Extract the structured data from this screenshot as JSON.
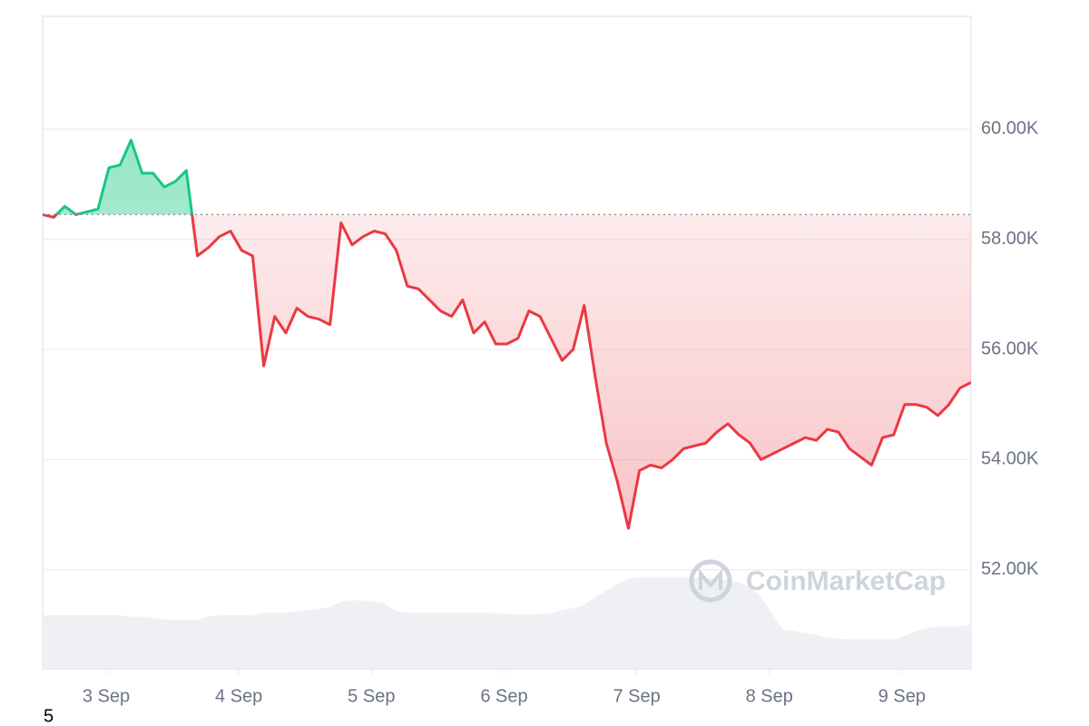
{
  "chart_data": {
    "type": "line",
    "reference": 58450,
    "series": [
      {
        "name": "price",
        "color_up": "#16c784",
        "color_down": "#ea3943",
        "values": [
          58450,
          58400,
          58600,
          58450,
          58500,
          58550,
          59300,
          59350,
          59800,
          59200,
          59200,
          58950,
          59050,
          59250,
          57700,
          57850,
          58050,
          58150,
          57800,
          57700,
          55700,
          56600,
          56300,
          56750,
          56600,
          56550,
          56450,
          58300,
          57900,
          58050,
          58150,
          58100,
          57800,
          57150,
          57100,
          56900,
          56700,
          56600,
          56900,
          56300,
          56500,
          56100,
          56100,
          56200,
          56700,
          56600,
          56200,
          55800,
          56000,
          56800,
          55500,
          54300,
          53600,
          52750,
          53800,
          53900,
          53850,
          54000,
          54200,
          54250,
          54300,
          54500,
          54650,
          54450,
          54300,
          54000,
          54100,
          54200,
          54300,
          54400,
          54350,
          54550,
          54500,
          54200,
          54050,
          53900,
          54400,
          54450,
          55000,
          55000,
          54950,
          54800,
          55000,
          55300,
          55400
        ]
      },
      {
        "name": "volume",
        "axis": "y2",
        "color": "#eef0f3",
        "values": [
          8.2,
          8.2,
          8.2,
          8.2,
          8.2,
          8.2,
          8.2,
          8.2,
          8.0,
          8.0,
          7.8,
          7.6,
          7.5,
          7.5,
          7.5,
          8.0,
          8.2,
          8.2,
          8.2,
          8.2,
          8.6,
          8.6,
          8.6,
          8.8,
          9.0,
          9.2,
          9.5,
          10.3,
          10.5,
          10.5,
          10.3,
          10.0,
          8.8,
          8.6,
          8.6,
          8.6,
          8.6,
          8.6,
          8.6,
          8.6,
          8.6,
          8.5,
          8.4,
          8.4,
          8.4,
          8.4,
          8.5,
          9.0,
          9.3,
          9.8,
          11.0,
          12.0,
          13.0,
          13.8,
          14.0,
          14.0,
          14.0,
          14.0,
          14.0,
          14.0,
          13.9,
          13.8,
          13.6,
          13.3,
          12.5,
          11.0,
          8.5,
          6.0,
          5.8,
          5.5,
          5.2,
          4.8,
          4.6,
          4.5,
          4.5,
          4.5,
          4.5,
          4.5,
          5.0,
          5.8,
          6.2,
          6.5,
          6.5,
          6.5,
          6.8
        ]
      }
    ],
    "ylim": [
      50200,
      62050
    ],
    "y2lim": [
      0,
      100
    ],
    "yticks": [
      {
        "value": 52000,
        "label": "52.00K"
      },
      {
        "value": 54000,
        "label": "54.00K"
      },
      {
        "value": 56000,
        "label": "56.00K"
      },
      {
        "value": 58000,
        "label": "58.00K"
      },
      {
        "value": 60000,
        "label": "60.00K"
      }
    ],
    "xlim": [
      0,
      84
    ],
    "xticks": [
      {
        "value": 5.75,
        "label": "3 Sep"
      },
      {
        "value": 17.75,
        "label": "4 Sep"
      },
      {
        "value": 29.75,
        "label": "5 Sep"
      },
      {
        "value": 41.75,
        "label": "6 Sep"
      },
      {
        "value": 53.75,
        "label": "7 Sep"
      },
      {
        "value": 65.75,
        "label": "8 Sep"
      },
      {
        "value": 77.75,
        "label": "9 Sep"
      }
    ],
    "grid": true,
    "watermark": "CoinMarketCap",
    "footer_text": "5"
  }
}
